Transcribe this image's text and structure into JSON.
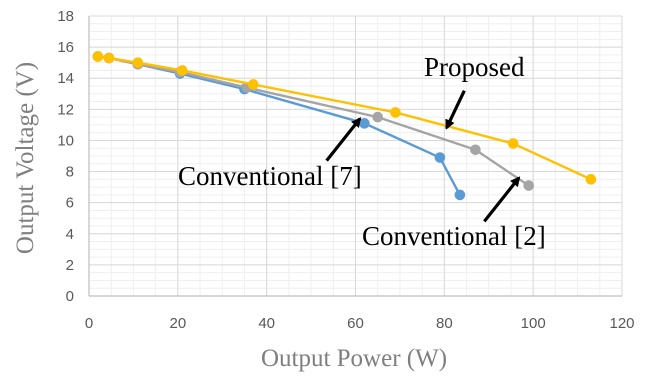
{
  "chart_data": {
    "type": "line",
    "title": "",
    "xlabel": "Output Power  (W)",
    "ylabel": "Output Voltage  (V)",
    "xlim": [
      0,
      120
    ],
    "ylim": [
      0,
      18
    ],
    "x_ticks": [
      0,
      20,
      40,
      60,
      80,
      100,
      120
    ],
    "y_ticks": [
      0,
      2,
      4,
      6,
      8,
      10,
      12,
      14,
      16,
      18
    ],
    "grid": true,
    "legend": "none",
    "series": [
      {
        "name": "Conventional [7]",
        "color": "#5b9bd5",
        "points": [
          [
            2,
            15.4
          ],
          [
            4.5,
            15.3
          ],
          [
            11,
            14.9
          ],
          [
            20.5,
            14.3
          ],
          [
            35,
            13.3
          ],
          [
            62,
            11.1
          ],
          [
            79,
            8.9
          ],
          [
            83.5,
            6.5
          ]
        ]
      },
      {
        "name": "Conventional [2]",
        "color": "#a5a5a5",
        "points": [
          [
            2,
            15.4
          ],
          [
            4.5,
            15.3
          ],
          [
            11,
            14.9
          ],
          [
            20.5,
            14.4
          ],
          [
            35.5,
            13.4
          ],
          [
            65,
            11.5
          ],
          [
            87,
            9.4
          ],
          [
            99,
            7.1
          ]
        ]
      },
      {
        "name": "Proposed",
        "color": "#ffc000",
        "points": [
          [
            2,
            15.4
          ],
          [
            4.5,
            15.3
          ],
          [
            11,
            15.0
          ],
          [
            21,
            14.5
          ],
          [
            37,
            13.6
          ],
          [
            69,
            11.8
          ],
          [
            95.5,
            9.8
          ],
          [
            113,
            7.5
          ]
        ]
      }
    ],
    "annotations": [
      {
        "text": "Proposed",
        "arrow_from": [
          84.5,
          13.2
        ],
        "arrow_to": [
          80.5,
          10.8
        ]
      },
      {
        "text": "Conventional [7]",
        "arrow_from": [
          53.5,
          8.7
        ],
        "arrow_to": [
          61.0,
          11.4
        ]
      },
      {
        "text": "Conventional [2]",
        "arrow_from": [
          89.0,
          4.8
        ],
        "arrow_to": [
          96.8,
          7.6
        ]
      }
    ]
  }
}
